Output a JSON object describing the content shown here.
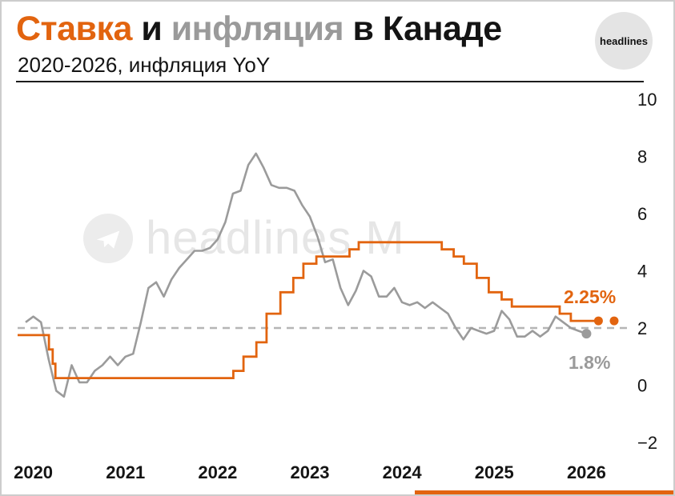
{
  "header": {
    "title_part1": "Ставка",
    "title_part2": " и ",
    "title_part3": "инфляция",
    "title_part4": " в Канаде",
    "subtitle": "2020-2026, инфляция YoY",
    "logo_text": "headlines"
  },
  "watermark": {
    "text": "headlines M",
    "icon": "telegram-plane-icon"
  },
  "annotations": {
    "rate_label": "2.25%",
    "inflation_label": "1.8%"
  },
  "colors": {
    "accent_orange": "#E2640F",
    "inflation_gray": "#9b9b9b",
    "target_dash": "#b5b5b5",
    "axis_text": "#151515"
  },
  "chart_data": {
    "type": "line",
    "title": "Ставка и инфляция в Канаде",
    "subtitle": "2020-2026, инфляция YoY",
    "x_range": [
      2019.83,
      2026.5
    ],
    "y_range": [
      -2,
      10
    ],
    "x_ticks": [
      2020,
      2021,
      2022,
      2023,
      2024,
      2025,
      2026
    ],
    "x_tick_labels": [
      "2020",
      "2021",
      "2022",
      "2023",
      "2024",
      "2025",
      "2026"
    ],
    "y_ticks": [
      10,
      8,
      6,
      4,
      2,
      0,
      -2
    ],
    "y_tick_labels": [
      "10",
      "8",
      "6",
      "4",
      "2",
      "0",
      "−2"
    ],
    "grid": "off",
    "legend": "none",
    "target_line_value": 2,
    "series": [
      {
        "name": "ставка",
        "type": "step",
        "color": "#E2640F",
        "points": [
          [
            2019.83,
            1.75
          ],
          [
            2020.17,
            1.25
          ],
          [
            2020.21,
            0.75
          ],
          [
            2020.24,
            0.25
          ],
          [
            2022.17,
            0.5
          ],
          [
            2022.28,
            1.0
          ],
          [
            2022.42,
            1.5
          ],
          [
            2022.53,
            2.5
          ],
          [
            2022.68,
            3.25
          ],
          [
            2022.82,
            3.75
          ],
          [
            2022.93,
            4.25
          ],
          [
            2023.07,
            4.5
          ],
          [
            2023.43,
            4.75
          ],
          [
            2023.53,
            5.0
          ],
          [
            2024.43,
            4.75
          ],
          [
            2024.56,
            4.5
          ],
          [
            2024.67,
            4.25
          ],
          [
            2024.81,
            3.75
          ],
          [
            2024.94,
            3.25
          ],
          [
            2025.08,
            3.0
          ],
          [
            2025.19,
            2.75
          ],
          [
            2025.71,
            2.5
          ],
          [
            2025.83,
            2.25
          ]
        ],
        "line_end_x": 2026.13,
        "end_dots": [
          [
            2026.13,
            2.25
          ],
          [
            2026.3,
            2.25
          ]
        ],
        "end_label": "2.25%"
      },
      {
        "name": "инфляция YoY",
        "type": "line",
        "color": "#9b9b9b",
        "x_start": 2019.9167,
        "x_step": 0.0833,
        "values": [
          2.2,
          2.4,
          2.2,
          0.9,
          -0.2,
          -0.4,
          0.7,
          0.1,
          0.1,
          0.5,
          0.7,
          1.0,
          0.7,
          1.0,
          1.1,
          2.2,
          3.4,
          3.6,
          3.1,
          3.7,
          4.1,
          4.4,
          4.7,
          4.7,
          4.8,
          5.1,
          5.7,
          6.7,
          6.8,
          7.7,
          8.1,
          7.6,
          7.0,
          6.9,
          6.9,
          6.8,
          6.3,
          5.9,
          5.2,
          4.3,
          4.4,
          3.4,
          2.8,
          3.3,
          4.0,
          3.8,
          3.1,
          3.1,
          3.4,
          2.9,
          2.8,
          2.9,
          2.7,
          2.9,
          2.7,
          2.5,
          2.0,
          1.6,
          2.0,
          1.9,
          1.8,
          1.9,
          2.6,
          2.3,
          1.7,
          1.7,
          1.9,
          1.7,
          1.9,
          2.4,
          2.2,
          2.0,
          1.9,
          1.8
        ],
        "end_dots": [
          [
            2026.0,
            1.8
          ]
        ],
        "end_label": "1.8%"
      }
    ]
  }
}
